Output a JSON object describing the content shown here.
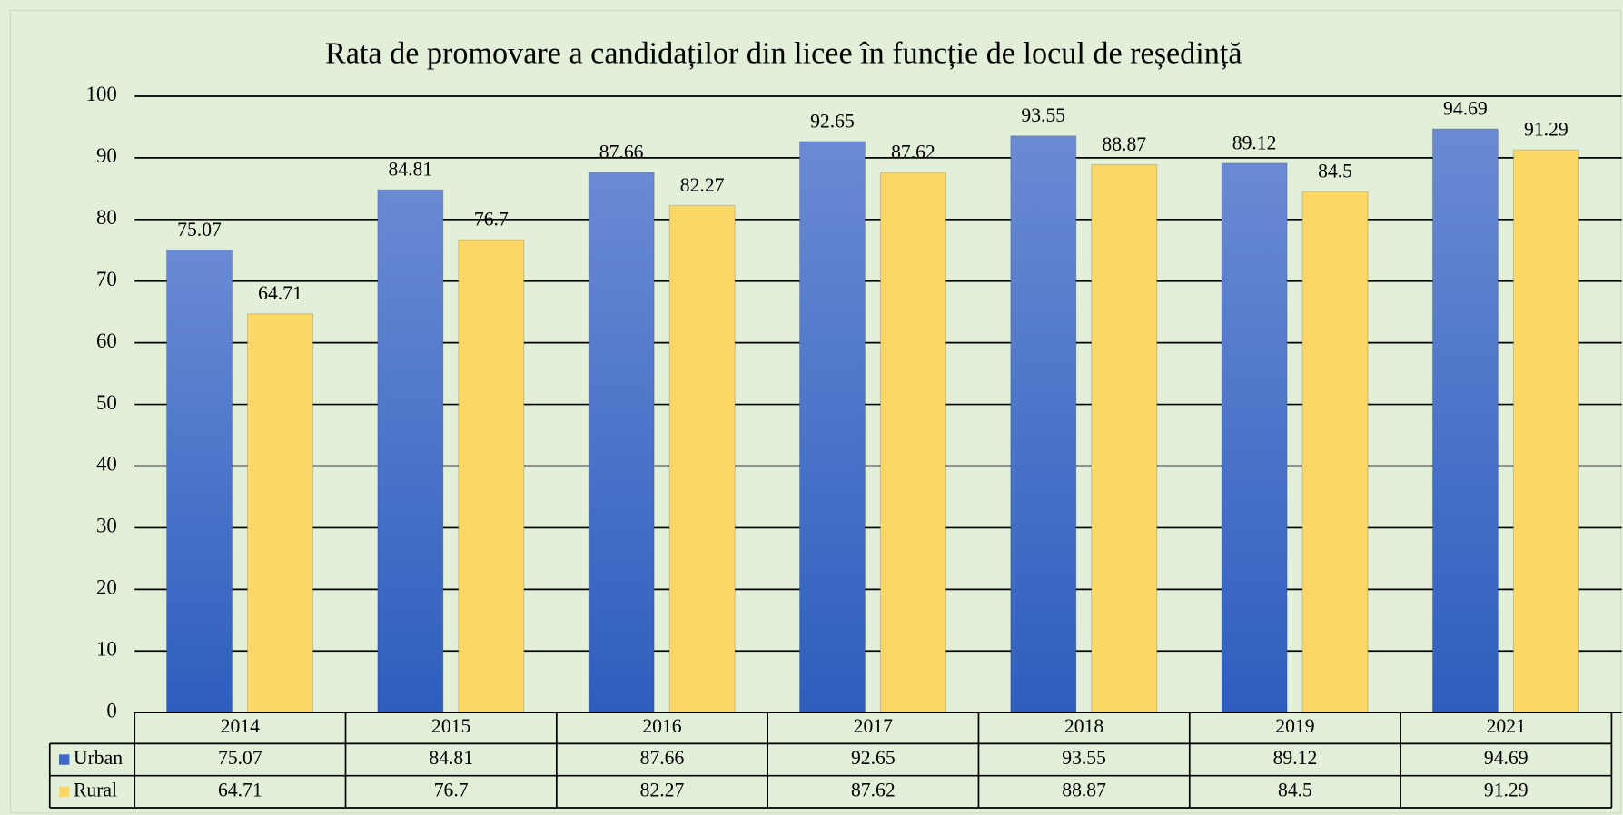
{
  "chart_data": {
    "type": "bar",
    "title": "Rata de promovare a candidaților din licee în funcție de locul de reședință",
    "categories": [
      "2014",
      "2015",
      "2016",
      "2017",
      "2018",
      "2019",
      "2021"
    ],
    "series": [
      {
        "name": "Urban",
        "color": "#3f6ac8",
        "values": [
          75.07,
          84.81,
          87.66,
          92.65,
          93.55,
          89.12,
          94.69
        ]
      },
      {
        "name": "Rural",
        "color": "#fdd766",
        "values": [
          64.71,
          76.7,
          82.27,
          87.62,
          88.87,
          84.5,
          91.29
        ]
      }
    ],
    "ylim": [
      0,
      100
    ],
    "yticks": [
      0,
      10,
      20,
      30,
      40,
      50,
      60,
      70,
      80,
      90,
      100
    ],
    "grid": true,
    "data_table": true
  }
}
